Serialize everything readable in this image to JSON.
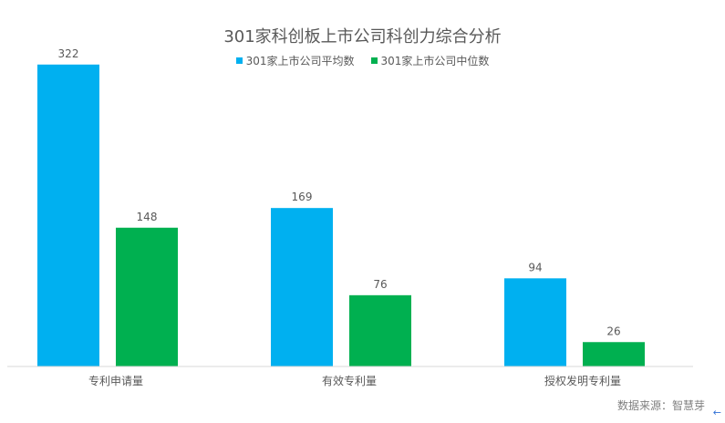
{
  "chart_data": {
    "type": "bar",
    "title": "301家科创板上市公司科创力综合分析",
    "categories": [
      "专利申请量",
      "有效专利量",
      "授权发明专利量"
    ],
    "series": [
      {
        "name": "301家上市公司平均数",
        "color": "#00b0f0",
        "values": [
          322,
          169,
          94
        ]
      },
      {
        "name": "301家上市公司中位数",
        "color": "#00b050",
        "values": [
          148,
          76,
          26
        ]
      }
    ],
    "ylim": [
      0,
      350
    ],
    "grid": false,
    "legend_position": "top"
  },
  "source_text": "数据来源：智慧芽"
}
